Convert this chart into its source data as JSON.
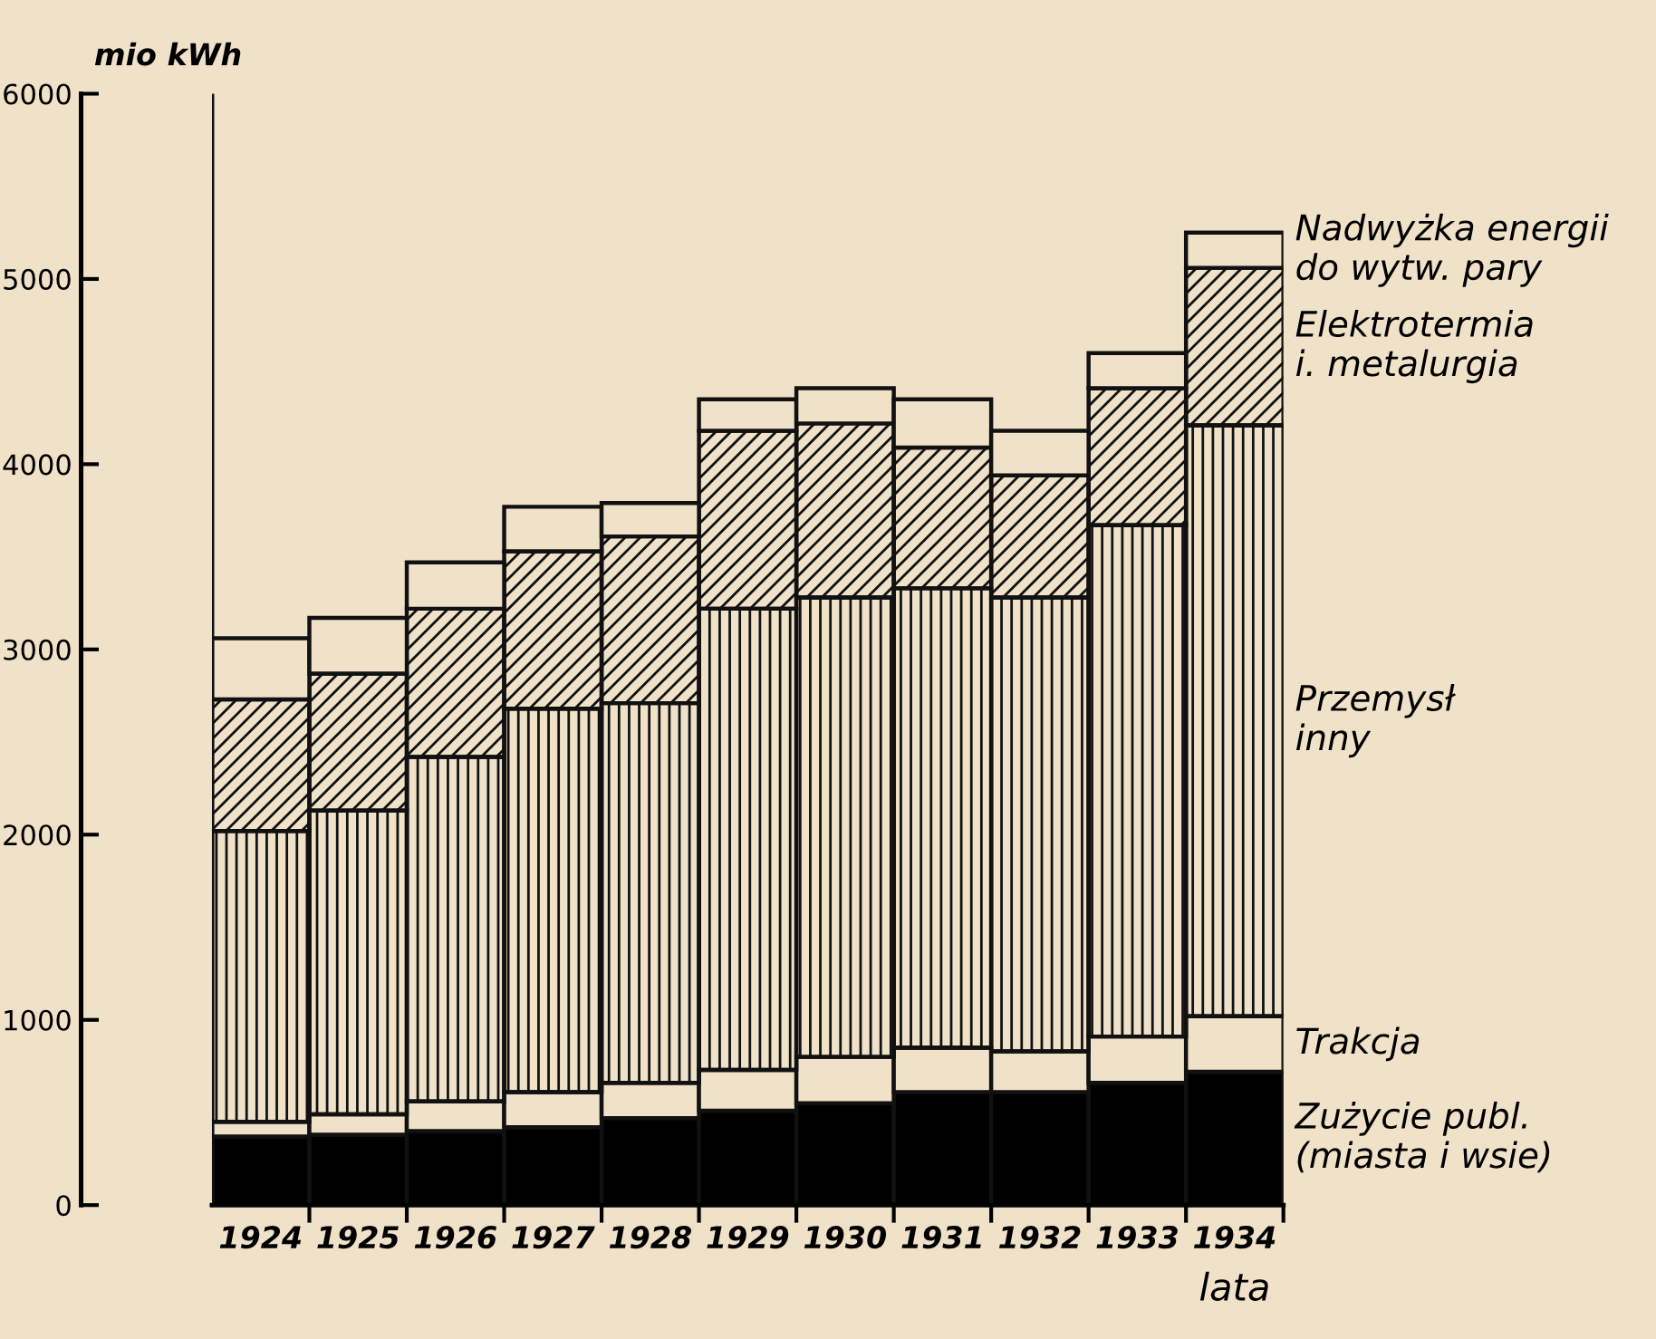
{
  "chart_data": {
    "type": "bar",
    "stacked": true,
    "ylabel": "mio kWh",
    "xlabel": "lata",
    "categories": [
      "1924",
      "1925",
      "1926",
      "1927",
      "1928",
      "1929",
      "1930",
      "1931",
      "1932",
      "1933",
      "1934"
    ],
    "series": [
      {
        "name": "Zużycie publ.\n(miasta i wsie)",
        "color": "#000000",
        "values": [
          370,
          380,
          400,
          420,
          470,
          510,
          550,
          610,
          610,
          660,
          720
        ]
      },
      {
        "name": "Trakcja",
        "color": "#efe2c9",
        "values": [
          80,
          110,
          160,
          190,
          190,
          220,
          250,
          240,
          220,
          250,
          300
        ]
      },
      {
        "name": "Przemysł\ninny",
        "color": "#111111",
        "values": [
          1570,
          1640,
          1860,
          2070,
          2050,
          2490,
          2480,
          2480,
          2450,
          2760,
          3190
        ]
      },
      {
        "name": "Elektrotermia\ni. metalurgia",
        "color": "#111111",
        "values": [
          710,
          740,
          800,
          850,
          900,
          960,
          940,
          760,
          660,
          740,
          850
        ]
      },
      {
        "name": "Nadwyżka energii\ndo wytw. pary",
        "color": "#efe2c9",
        "values": [
          330,
          300,
          250,
          240,
          180,
          170,
          190,
          260,
          240,
          190,
          190
        ]
      }
    ],
    "ylim": [
      0,
      6000
    ],
    "yticks": [
      0,
      1000,
      2000,
      3000,
      4000,
      5000,
      6000
    ],
    "grid": false,
    "legend": "right"
  }
}
